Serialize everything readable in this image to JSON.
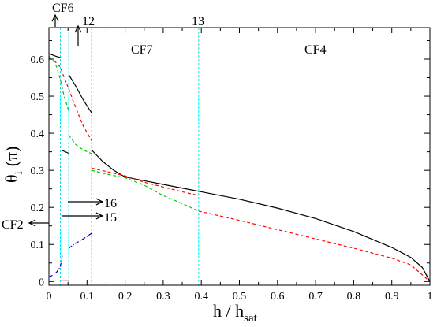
{
  "chart_data": {
    "type": "line",
    "title": "",
    "xlabel": "h / h",
    "xlabel_sub": "sat",
    "ylabel": "θ",
    "ylabel_sub": "i",
    "ylabel_unit": "(π)",
    "xlim": [
      0,
      1
    ],
    "ylim": [
      -0.01,
      0.685
    ],
    "xticks": [
      0,
      0.1,
      0.2,
      0.3,
      0.4,
      0.5,
      0.6,
      0.7,
      0.8,
      0.9,
      1
    ],
    "xtick_labels": [
      "0",
      "0.1",
      "0.2",
      "0.3",
      "0.4",
      "0.5",
      "0.6",
      "0.7",
      "0.8",
      "0.9",
      "1"
    ],
    "yticks": [
      0,
      0.1,
      0.2,
      0.3,
      0.4,
      0.5,
      0.6
    ],
    "ytick_labels": [
      "0",
      "0.1",
      "0.2",
      "0.3",
      "0.4",
      "0.5",
      "0.6"
    ],
    "grid": false,
    "legend": "none",
    "vlines": [
      0.03,
      0.052,
      0.112,
      0.393
    ],
    "vline_color": "#00e5ee",
    "series": [
      {
        "color": "#000000",
        "dash": "",
        "segments": [
          [
            [
              0,
              0.615
            ],
            [
              0.01,
              0.611
            ],
            [
              0.02,
              0.607
            ],
            [
              0.03,
              0.604
            ]
          ],
          [
            [
              0.032,
              0.355
            ],
            [
              0.052,
              0.346
            ]
          ],
          [
            [
              0.052,
              0.558
            ],
            [
              0.07,
              0.528
            ],
            [
              0.09,
              0.49
            ],
            [
              0.112,
              0.455
            ]
          ],
          [
            [
              0.112,
              0.355
            ],
            [
              0.14,
              0.325
            ],
            [
              0.17,
              0.3
            ],
            [
              0.2,
              0.282
            ],
            [
              0.25,
              0.272
            ],
            [
              0.3,
              0.262
            ],
            [
              0.35,
              0.252
            ],
            [
              0.4,
              0.242
            ],
            [
              0.5,
              0.222
            ],
            [
              0.6,
              0.198
            ],
            [
              0.7,
              0.17
            ],
            [
              0.8,
              0.135
            ],
            [
              0.9,
              0.092
            ],
            [
              0.95,
              0.065
            ],
            [
              0.98,
              0.038
            ],
            [
              1.0,
              0.0
            ]
          ]
        ]
      },
      {
        "color": "#ff0000",
        "dash": "4,3",
        "segments": [
          [
            [
              0,
              0.602
            ],
            [
              0.01,
              0.598
            ],
            [
              0.02,
              0.59
            ],
            [
              0.03,
              0.578
            ],
            [
              0.04,
              0.55
            ],
            [
              0.052,
              0.52
            ]
          ],
          [
            [
              0.052,
              0.52
            ],
            [
              0.07,
              0.47
            ],
            [
              0.09,
              0.42
            ],
            [
              0.112,
              0.38
            ]
          ],
          [
            [
              0.112,
              0.306
            ],
            [
              0.15,
              0.297
            ],
            [
              0.2,
              0.285
            ],
            [
              0.25,
              0.268
            ],
            [
              0.3,
              0.255
            ],
            [
              0.35,
              0.242
            ],
            [
              0.393,
              0.232
            ]
          ],
          [
            [
              0.393,
              0.19
            ],
            [
              0.5,
              0.165
            ],
            [
              0.6,
              0.14
            ],
            [
              0.7,
              0.115
            ],
            [
              0.8,
              0.09
            ],
            [
              0.9,
              0.063
            ],
            [
              0.95,
              0.045
            ],
            [
              1.0,
              0.0
            ]
          ]
        ]
      },
      {
        "color": "#00cc00",
        "dash": "4,3",
        "segments": [
          [
            [
              0,
              0.608
            ],
            [
              0.01,
              0.598
            ],
            [
              0.02,
              0.58
            ],
            [
              0.03,
              0.545
            ],
            [
              0.04,
              0.5
            ],
            [
              0.052,
              0.46
            ]
          ],
          [
            [
              0.052,
              0.395
            ],
            [
              0.07,
              0.37
            ],
            [
              0.09,
              0.355
            ],
            [
              0.112,
              0.345
            ]
          ],
          [
            [
              0.112,
              0.3
            ],
            [
              0.15,
              0.29
            ],
            [
              0.2,
              0.28
            ],
            [
              0.25,
              0.26
            ],
            [
              0.3,
              0.232
            ],
            [
              0.35,
              0.21
            ],
            [
              0.393,
              0.19
            ]
          ]
        ]
      },
      {
        "color": "#0000cc",
        "dash": "5,2,1,2",
        "segments": [
          [
            [
              0,
              0.012
            ],
            [
              0.01,
              0.017
            ],
            [
              0.02,
              0.025
            ],
            [
              0.03,
              0.04
            ],
            [
              0.035,
              0.07
            ]
          ],
          [
            [
              0.052,
              0.09
            ],
            [
              0.07,
              0.103
            ],
            [
              0.09,
              0.115
            ],
            [
              0.112,
              0.13
            ]
          ]
        ]
      },
      {
        "color": "#ff0000",
        "dash": "",
        "segments": [
          [
            [
              0.03,
              0.002
            ],
            [
              0.052,
              0.002
            ]
          ]
        ]
      }
    ],
    "annotations": [
      {
        "text": "CF6"
      },
      {
        "text": "12"
      },
      {
        "text": "13"
      },
      {
        "text": "CF7"
      },
      {
        "text": "CF4"
      },
      {
        "text": "16"
      },
      {
        "text": "15"
      },
      {
        "text": "CF2"
      }
    ]
  }
}
